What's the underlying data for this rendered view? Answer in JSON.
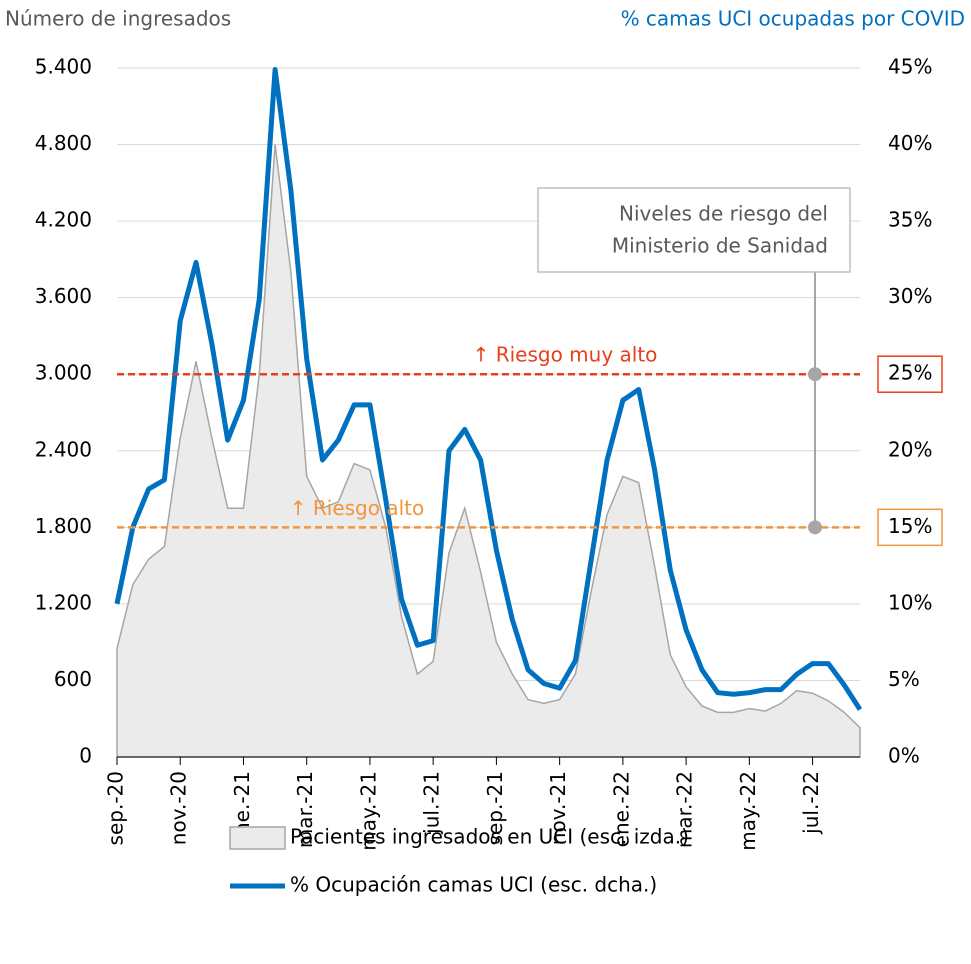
{
  "chart_data": {
    "type": "area-line",
    "y_title": "Número de ingresados",
    "y2_title": "% camas UCI ocupadas por COVID",
    "categories": [
      "sep.-20",
      null,
      null,
      null,
      "nov.-20",
      null,
      null,
      null,
      "ene.-21",
      null,
      null,
      null,
      "mar.-21",
      null,
      null,
      null,
      "may.-21",
      null,
      null,
      null,
      "jul.-21",
      null,
      null,
      null,
      "sep.-21",
      null,
      null,
      null,
      "nov.-21",
      null,
      null,
      null,
      "ene.-22",
      null,
      null,
      null,
      "mar.-22",
      null,
      null,
      null,
      "may.-22",
      null,
      null,
      null,
      "jul.-22",
      null,
      null,
      null
    ],
    "series": [
      {
        "name": "Pacientes ingresados en UCI (esc. izda.)",
        "kind": "area",
        "axis": "y",
        "color": "#ebebeb",
        "stroke": "#a6a6a6",
        "values": [
          850,
          1350,
          1550,
          1650,
          2500,
          3100,
          2500,
          1950,
          1950,
          3000,
          4800,
          3800,
          2200,
          1950,
          2000,
          2300,
          2250,
          1800,
          1100,
          650,
          750,
          1600,
          1950,
          1450,
          900,
          650,
          450,
          420,
          450,
          650,
          1300,
          1900,
          2200,
          2150,
          1500,
          800,
          550,
          400,
          350,
          350,
          380,
          360,
          420,
          520,
          500,
          440,
          350,
          230
        ]
      },
      {
        "name": "% Ocupación camas UCI (esc. dcha.)",
        "kind": "line",
        "axis": "y2",
        "color": "#0070c0",
        "values": [
          10,
          15,
          17.5,
          18.1,
          28.5,
          32.3,
          27,
          20.7,
          23.3,
          29.9,
          44.9,
          37,
          26,
          19.4,
          20.7,
          23,
          23,
          16.8,
          10.3,
          7.3,
          7.6,
          20,
          21.4,
          19.4,
          13.5,
          9,
          5.7,
          4.8,
          4.5,
          6.3,
          12.9,
          19.4,
          23.3,
          24,
          18.8,
          12.2,
          8.3,
          5.7,
          4.2,
          4.1,
          4.2,
          4.4,
          4.4,
          5.4,
          6.1,
          6.1,
          4.7,
          3.1
        ]
      }
    ],
    "ylim": [
      0,
      5400
    ],
    "yticks": [
      0,
      600,
      {
        "value": 1200,
        "label": "1.200"
      },
      {
        "value": 1800,
        "label": "1.800"
      },
      {
        "value": 2400,
        "label": "2.400"
      },
      {
        "value": 3000,
        "label": "3.000"
      },
      {
        "value": 3600,
        "label": "3.600"
      },
      {
        "value": 4200,
        "label": "4.200"
      },
      {
        "value": 4800,
        "label": "4.800"
      },
      {
        "value": 5400,
        "label": "5.400"
      }
    ],
    "y2lim": [
      0,
      45
    ],
    "y2ticks": [
      {
        "value": 0,
        "label": "0%"
      },
      {
        "value": 5,
        "label": "5%"
      },
      {
        "value": 10,
        "label": "10%"
      },
      {
        "value": 15,
        "label": "15%"
      },
      {
        "value": 20,
        "label": "20%"
      },
      {
        "value": 25,
        "label": "25%"
      },
      {
        "value": 30,
        "label": "30%"
      },
      {
        "value": 35,
        "label": "35%"
      },
      {
        "value": 40,
        "label": "40%"
      },
      {
        "value": 45,
        "label": "45%"
      }
    ],
    "grid": true,
    "reference_lines": [
      {
        "value": 25,
        "label": "↑ Riesgo muy alto",
        "color": "#e8401c"
      },
      {
        "value": 15,
        "label": "↑ Riesgo alto",
        "color": "#f0963c"
      }
    ],
    "annotation": [
      "Niveles de riesgo del",
      "Ministerio de Sanidad"
    ]
  }
}
